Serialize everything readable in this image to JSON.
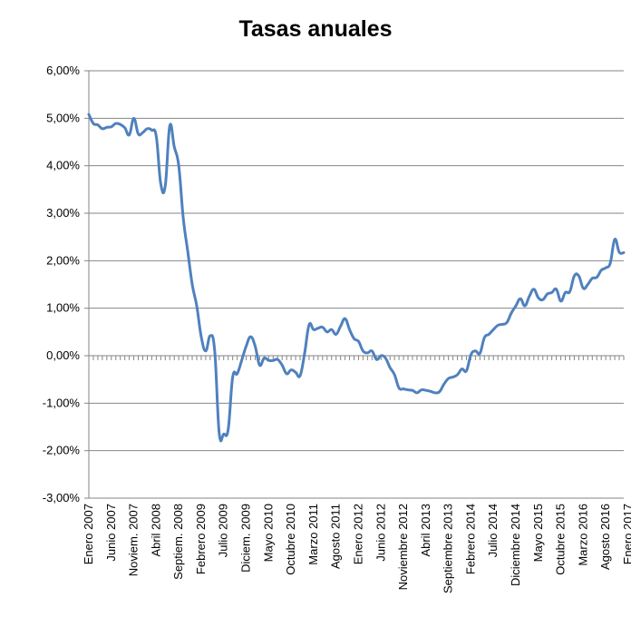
{
  "chart_data": {
    "type": "line",
    "title": "Tasas anuales",
    "xlabel": "",
    "ylabel": "",
    "ylim": [
      -3.0,
      6.0
    ],
    "y_ticks": [
      {
        "value": 6,
        "label": "6,00%"
      },
      {
        "value": 5,
        "label": "5,00%"
      },
      {
        "value": 4,
        "label": "4,00%"
      },
      {
        "value": 3,
        "label": "3,00%"
      },
      {
        "value": 2,
        "label": "2,00%"
      },
      {
        "value": 1,
        "label": "1,00%"
      },
      {
        "value": 0,
        "label": "0,00%"
      },
      {
        "value": -1,
        "label": "-1,00%"
      },
      {
        "value": -2,
        "label": "-2,00%"
      },
      {
        "value": -3,
        "label": "-3,00%"
      }
    ],
    "x_tick_labels": [
      {
        "index": 0,
        "label": "Enero 2007"
      },
      {
        "index": 5,
        "label": "Junio 2007"
      },
      {
        "index": 10,
        "label": "Noviem. 2007"
      },
      {
        "index": 15,
        "label": "Abril 2008"
      },
      {
        "index": 20,
        "label": "Septiem. 2008"
      },
      {
        "index": 25,
        "label": "Febrero 2009"
      },
      {
        "index": 30,
        "label": "Julio 2009"
      },
      {
        "index": 35,
        "label": "Diciem. 2009"
      },
      {
        "index": 40,
        "label": "Mayo 2010"
      },
      {
        "index": 45,
        "label": "Octubre 2010"
      },
      {
        "index": 50,
        "label": "Marzo 2011"
      },
      {
        "index": 55,
        "label": "Agosto 2011"
      },
      {
        "index": 60,
        "label": "Enero 2012"
      },
      {
        "index": 65,
        "label": "Junio 2012"
      },
      {
        "index": 70,
        "label": "Noviembre 2012"
      },
      {
        "index": 75,
        "label": "Abril 2013"
      },
      {
        "index": 80,
        "label": "Septiembre 2013"
      },
      {
        "index": 85,
        "label": "Febrero 2014"
      },
      {
        "index": 90,
        "label": "Julio 2014"
      },
      {
        "index": 95,
        "label": "Diciembre 2014"
      },
      {
        "index": 100,
        "label": "Mayo 2015"
      },
      {
        "index": 105,
        "label": "Octubre 2015"
      },
      {
        "index": 110,
        "label": "Marzo 2016"
      },
      {
        "index": 115,
        "label": "Agosto 2016"
      },
      {
        "index": 120,
        "label": "Enero 2017"
      }
    ],
    "grid": true,
    "legend": "none",
    "line_color": "#4f81bd",
    "series": [
      {
        "x_start": "Enero 2007",
        "x_end": "Febrero 2017",
        "values": [
          5.08,
          4.89,
          4.86,
          4.78,
          4.81,
          4.82,
          4.89,
          4.87,
          4.8,
          4.65,
          5.0,
          4.67,
          4.7,
          4.78,
          4.75,
          4.62,
          3.62,
          3.58,
          4.84,
          4.4,
          4.0,
          2.9,
          2.2,
          1.5,
          1.05,
          0.4,
          0.1,
          0.42,
          0.1,
          -1.63,
          -1.65,
          -1.55,
          -0.45,
          -0.38,
          -0.1,
          0.2,
          0.4,
          0.2,
          -0.2,
          -0.05,
          -0.1,
          -0.1,
          -0.08,
          -0.2,
          -0.38,
          -0.3,
          -0.35,
          -0.42,
          0.05,
          0.65,
          0.55,
          0.58,
          0.6,
          0.5,
          0.55,
          0.45,
          0.62,
          0.78,
          0.55,
          0.36,
          0.3,
          0.1,
          0.06,
          0.1,
          -0.08,
          0.0,
          -0.05,
          -0.25,
          -0.4,
          -0.68,
          -0.7,
          -0.72,
          -0.73,
          -0.78,
          -0.72,
          -0.73,
          -0.75,
          -0.78,
          -0.76,
          -0.6,
          -0.48,
          -0.45,
          -0.4,
          -0.28,
          -0.32,
          0.02,
          0.1,
          0.05,
          0.38,
          0.45,
          0.55,
          0.64,
          0.66,
          0.7,
          0.9,
          1.05,
          1.2,
          1.05,
          1.25,
          1.4,
          1.22,
          1.18,
          1.3,
          1.33,
          1.4,
          1.15,
          1.33,
          1.35,
          1.68,
          1.68,
          1.42,
          1.5,
          1.63,
          1.65,
          1.8,
          1.85,
          1.95,
          2.45,
          2.18,
          2.17
        ]
      }
    ]
  }
}
